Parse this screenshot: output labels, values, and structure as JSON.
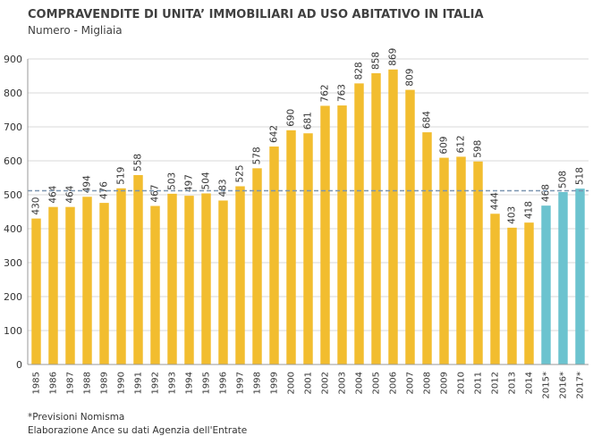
{
  "header": {
    "title": "COMPRAVENDITE DI UNITA’ IMMOBILIARI AD USO ABITATIVO IN ITALIA",
    "subtitle": "Numero - Migliaia"
  },
  "footer": {
    "note1": "*Previsioni Nomisma",
    "note2": "Elaborazione Ance su dati Agenzia dell'Entrate"
  },
  "chart_data": {
    "type": "bar",
    "categories": [
      "1985",
      "1986",
      "1987",
      "1988",
      "1989",
      "1990",
      "1991",
      "1992",
      "1993",
      "1994",
      "1995",
      "1996",
      "1997",
      "1998",
      "1999",
      "2000",
      "2001",
      "2002",
      "2003",
      "2004",
      "2005",
      "2006",
      "2007",
      "2008",
      "2009",
      "2010",
      "2011",
      "2012",
      "2013",
      "2014",
      "2015*",
      "2016*",
      "2017*"
    ],
    "values": [
      430,
      464,
      464,
      494,
      476,
      519,
      558,
      467,
      503,
      497,
      504,
      483,
      525,
      578,
      642,
      690,
      681,
      762,
      763,
      828,
      858,
      869,
      809,
      684,
      609,
      612,
      598,
      444,
      403,
      418,
      468,
      508,
      518
    ],
    "forecast": [
      false,
      false,
      false,
      false,
      false,
      false,
      false,
      false,
      false,
      false,
      false,
      false,
      false,
      false,
      false,
      false,
      false,
      false,
      false,
      false,
      false,
      false,
      false,
      false,
      false,
      false,
      false,
      false,
      false,
      false,
      true,
      true,
      true
    ],
    "ylim": [
      0,
      900
    ],
    "yticks": [
      0,
      100,
      200,
      300,
      400,
      500,
      600,
      700,
      800,
      900
    ],
    "reference_line": 512,
    "grid": true,
    "colors": {
      "actual": "#f2bd2f",
      "forecast": "#6cc3cf",
      "grid": "#d9d9d9",
      "reference": "#7b95b0",
      "axis": "#999999"
    }
  }
}
